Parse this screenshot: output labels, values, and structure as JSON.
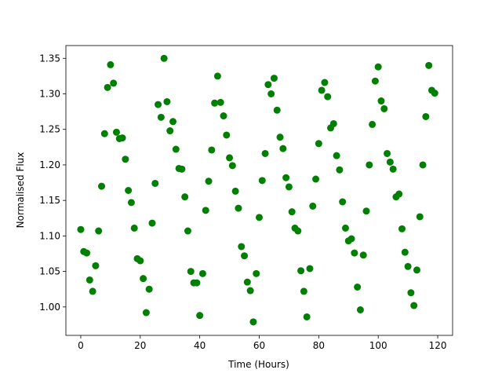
{
  "chart_data": {
    "type": "scatter",
    "xlabel": "Time (Hours)",
    "ylabel": "Normalised Flux",
    "color": "green",
    "x": [
      0,
      1,
      2,
      3,
      4,
      5,
      6,
      7,
      8,
      9,
      10,
      11,
      12,
      13,
      14,
      15,
      16,
      17,
      18,
      19,
      20,
      21,
      22,
      23,
      24,
      25,
      26,
      27,
      28,
      29,
      30,
      31,
      32,
      33,
      34,
      35,
      36,
      37,
      38,
      39,
      40,
      41,
      42,
      43,
      44,
      45,
      46,
      47,
      48,
      49,
      50,
      51,
      52,
      53,
      54,
      55,
      56,
      57,
      58,
      59,
      60,
      61,
      62,
      63,
      64,
      65,
      66,
      67,
      68,
      69,
      70,
      71,
      72,
      73,
      74,
      75,
      76,
      77,
      78,
      79,
      80,
      81,
      82,
      83,
      84,
      85,
      86,
      87,
      88,
      89,
      90,
      91,
      92,
      93,
      94,
      95,
      96,
      97,
      98,
      99,
      100,
      101,
      102,
      103,
      104,
      105,
      106,
      107,
      108,
      109,
      110,
      111,
      112,
      113,
      114,
      115,
      116,
      117,
      118,
      119
    ],
    "values": [
      1.109,
      1.078,
      1.076,
      1.038,
      1.022,
      1.058,
      1.107,
      1.17,
      1.244,
      1.309,
      1.341,
      1.315,
      1.246,
      1.237,
      1.238,
      1.208,
      1.164,
      1.147,
      1.111,
      1.068,
      1.065,
      1.04,
      0.992,
      1.025,
      1.118,
      1.174,
      1.285,
      1.267,
      1.35,
      1.289,
      1.248,
      1.261,
      1.222,
      1.195,
      1.194,
      1.155,
      1.107,
      1.05,
      1.034,
      1.034,
      0.988,
      1.047,
      1.136,
      1.177,
      1.221,
      1.287,
      1.325,
      1.288,
      1.269,
      1.242,
      1.21,
      1.199,
      1.163,
      1.139,
      1.085,
      1.072,
      1.035,
      1.023,
      0.979,
      1.047,
      1.126,
      1.178,
      1.216,
      1.313,
      1.3,
      1.322,
      1.277,
      1.239,
      1.223,
      1.182,
      1.169,
      1.134,
      1.111,
      1.107,
      1.051,
      1.022,
      0.986,
      1.054,
      1.142,
      1.18,
      1.23,
      1.305,
      1.316,
      1.296,
      1.252,
      1.258,
      1.213,
      1.193,
      1.148,
      1.111,
      1.093,
      1.096,
      1.076,
      1.028,
      0.996,
      1.073,
      1.135,
      1.2,
      1.257,
      1.318,
      1.338,
      1.29,
      1.279,
      1.216,
      1.204,
      1.194,
      1.155,
      1.159,
      1.11,
      1.077,
      1.057,
      1.02,
      1.002,
      1.052,
      1.127,
      1.2,
      1.268,
      1.34,
      1.305,
      1.301
    ],
    "xlim": [
      -5,
      125
    ],
    "ylim": [
      0.96,
      1.368
    ],
    "xticks": [
      0,
      20,
      40,
      60,
      80,
      100,
      120
    ],
    "yticks": [
      {
        "value": 1.0,
        "label": "1.00"
      },
      {
        "value": 1.05,
        "label": "1.05"
      },
      {
        "value": 1.1,
        "label": "1.10"
      },
      {
        "value": 1.15,
        "label": "1.15"
      },
      {
        "value": 1.2,
        "label": "1.20"
      },
      {
        "value": 1.25,
        "label": "1.25"
      },
      {
        "value": 1.3,
        "label": "1.30"
      },
      {
        "value": 1.35,
        "label": "1.35"
      }
    ]
  }
}
